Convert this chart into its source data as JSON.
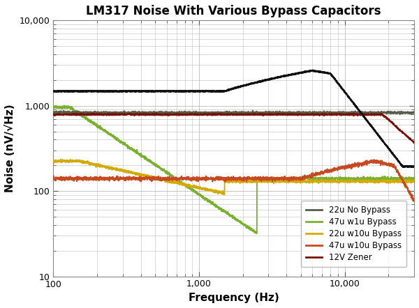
{
  "title": "LM317 Noise With Various Bypass Capacitors",
  "xlabel": "Frequency (Hz)",
  "ylabel": "Noise (nV/√Hz)",
  "xlim": [
    100,
    30000
  ],
  "ylim": [
    10,
    10000
  ],
  "background_color": "#ffffff",
  "grid_color": "#bbbbbb",
  "colors": {
    "black_line": "#111111",
    "dark_olive": "#555c47",
    "yellow_green": "#7ab030",
    "yellow": "#d4aa00",
    "orange_red": "#c84820",
    "dark_red": "#7a1008"
  },
  "legend": {
    "entries": [
      {
        "label": "22u No Bypass",
        "color": "#555c47"
      },
      {
        "label": "47u w1u Bypass",
        "color": "#7ab030"
      },
      {
        "label": "22u w10u Bypass",
        "color": "#d4aa00"
      },
      {
        "label": "47u w10u Bypass",
        "color": "#c84820"
      },
      {
        "label": "12V Zener",
        "color": "#7a1008"
      }
    ]
  }
}
